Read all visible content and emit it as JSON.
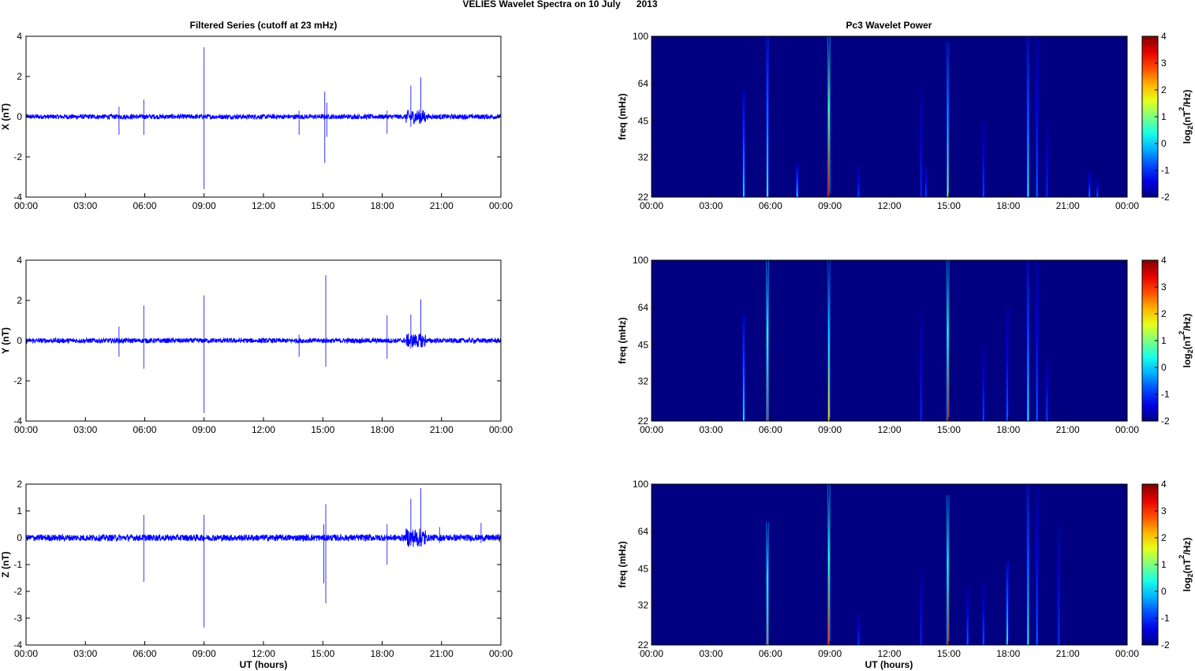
{
  "figure": {
    "title": "VELIES Wavelet Spectra on 10 July      2013",
    "left_column_title": "Filtered Series (cutoff at 23 mHz)",
    "right_column_title": "Pc3 Wavelet Power",
    "x_axis_label": "UT (hours)"
  },
  "colors": {
    "series_line": "#0000ff",
    "spectrogram_background": "#00008f"
  },
  "chart_data": [
    {
      "type": "line",
      "title": "Filtered Series (cutoff at 23 mHz)",
      "ylabel": "X (nT)",
      "xlabel": "",
      "x_ticks": [
        "00:00",
        "03:00",
        "06:00",
        "09:00",
        "12:00",
        "15:00",
        "18:00",
        "21:00",
        "00:00"
      ],
      "xlim_hours": [
        0,
        24
      ],
      "ylim": [
        -4,
        4
      ],
      "y_ticks": [
        -4,
        -2,
        0,
        2,
        4
      ],
      "series": [
        {
          "values_description_only": false,
          "spikes": [
            {
              "t": 4.7,
              "max": 0.5,
              "min": -0.9
            },
            {
              "t": 5.95,
              "max": 0.85,
              "min": -0.9
            },
            {
              "t": 9.0,
              "max": 3.45,
              "min": -3.6
            },
            {
              "t": 13.8,
              "max": 0.3,
              "min": -0.9
            },
            {
              "t": 15.1,
              "max": 1.25,
              "min": -2.3
            },
            {
              "t": 15.2,
              "max": 0.7,
              "min": -1.0
            },
            {
              "t": 18.25,
              "max": 0.3,
              "min": -0.85
            },
            {
              "t": 19.45,
              "max": 1.55,
              "min": -0.5
            },
            {
              "t": 19.95,
              "max": 1.95,
              "min": -0.35
            }
          ]
        }
      ]
    },
    {
      "type": "line",
      "ylabel": "Y (nT)",
      "xlabel": "",
      "x_ticks": [
        "00:00",
        "03:00",
        "06:00",
        "09:00",
        "12:00",
        "15:00",
        "18:00",
        "21:00",
        "00:00"
      ],
      "xlim_hours": [
        0,
        24
      ],
      "ylim": [
        -4,
        4
      ],
      "y_ticks": [
        -4,
        -2,
        0,
        2,
        4
      ],
      "series": [
        {
          "values_description_only": false,
          "spikes": [
            {
              "t": 4.7,
              "max": 0.7,
              "min": -0.8
            },
            {
              "t": 5.95,
              "max": 1.75,
              "min": -1.4
            },
            {
              "t": 9.0,
              "max": 2.25,
              "min": -3.6
            },
            {
              "t": 13.8,
              "max": 0.3,
              "min": -0.8
            },
            {
              "t": 15.15,
              "max": 3.25,
              "min": -1.3
            },
            {
              "t": 18.25,
              "max": 1.25,
              "min": -0.9
            },
            {
              "t": 19.45,
              "max": 1.3,
              "min": -0.4
            },
            {
              "t": 19.95,
              "max": 2.05,
              "min": -0.3
            }
          ]
        }
      ]
    },
    {
      "type": "line",
      "ylabel": "Z (nT)",
      "xlabel": "UT (hours)",
      "x_ticks": [
        "00:00",
        "03:00",
        "06:00",
        "09:00",
        "12:00",
        "15:00",
        "18:00",
        "21:00",
        "00:00"
      ],
      "xlim_hours": [
        0,
        24
      ],
      "ylim": [
        -4,
        2
      ],
      "y_ticks": [
        -4,
        -3,
        -2,
        -1,
        0,
        1,
        2
      ],
      "series": [
        {
          "values_description_only": false,
          "spikes": [
            {
              "t": 5.95,
              "max": 0.85,
              "min": -1.65
            },
            {
              "t": 9.0,
              "max": 0.85,
              "min": -3.35
            },
            {
              "t": 15.15,
              "max": 1.25,
              "min": -2.45
            },
            {
              "t": 15.05,
              "max": 0.5,
              "min": -1.7
            },
            {
              "t": 18.25,
              "max": 0.5,
              "min": -1.0
            },
            {
              "t": 19.45,
              "max": 1.45,
              "min": -0.3
            },
            {
              "t": 19.95,
              "max": 1.85,
              "min": -0.3
            },
            {
              "t": 20.9,
              "max": 0.4,
              "min": -0.2
            },
            {
              "t": 23.0,
              "max": 0.55,
              "min": -0.2
            }
          ]
        }
      ]
    },
    {
      "type": "heatmap",
      "title": "Pc3 Wavelet Power",
      "ylabel": "freq (mHz)",
      "xlabel": "",
      "colorbar_label": "log2(nT2/Hz)",
      "colorbar_ticks": [
        -2,
        -1,
        0,
        1,
        2,
        3,
        4
      ],
      "clim": [
        -2,
        4
      ],
      "x_ticks": [
        "00:00",
        "03:00",
        "06:00",
        "09:00",
        "12:00",
        "15:00",
        "18:00",
        "21:00",
        "00:00"
      ],
      "y_ticks": [
        22,
        32,
        45,
        64,
        100
      ],
      "ylim": [
        22,
        100
      ],
      "y_scale": "log",
      "background_level": -2,
      "bursts": [
        {
          "t": 4.65,
          "fmax": 60,
          "peak": 0.3
        },
        {
          "t": 5.85,
          "fmax": 100,
          "peak": 0.8
        },
        {
          "t": 7.35,
          "fmax": 30,
          "peak": 0.2
        },
        {
          "t": 8.95,
          "fmax": 100,
          "peak": 3.5
        },
        {
          "t": 10.45,
          "fmax": 30,
          "peak": -0.8
        },
        {
          "t": 13.6,
          "fmax": 64,
          "peak": -1.0
        },
        {
          "t": 13.85,
          "fmax": 30,
          "peak": -0.8
        },
        {
          "t": 14.95,
          "fmax": 95,
          "peak": 1.2
        },
        {
          "t": 16.75,
          "fmax": 45,
          "peak": -0.8
        },
        {
          "t": 19.0,
          "fmax": 100,
          "peak": 0.6
        },
        {
          "t": 19.45,
          "fmax": 100,
          "peak": -0.6
        },
        {
          "t": 19.95,
          "fmax": 45,
          "peak": -1.0
        },
        {
          "t": 22.1,
          "fmax": 28,
          "peak": -0.4
        },
        {
          "t": 22.5,
          "fmax": 26,
          "peak": -0.6
        }
      ]
    },
    {
      "type": "heatmap",
      "ylabel": "freq (mHz)",
      "xlabel": "",
      "colorbar_label": "log2(nT2/Hz)",
      "colorbar_ticks": [
        -2,
        -1,
        0,
        1,
        2,
        3,
        4
      ],
      "clim": [
        -2,
        4
      ],
      "x_ticks": [
        "00:00",
        "03:00",
        "06:00",
        "09:00",
        "12:00",
        "15:00",
        "18:00",
        "21:00",
        "00:00"
      ],
      "y_ticks": [
        22,
        32,
        45,
        64,
        100
      ],
      "ylim": [
        22,
        100
      ],
      "y_scale": "log",
      "background_level": -2,
      "bursts": [
        {
          "t": 4.65,
          "fmax": 60,
          "peak": 0.4
        },
        {
          "t": 5.85,
          "fmax": 100,
          "peak": 3.0
        },
        {
          "t": 8.95,
          "fmax": 100,
          "peak": 2.0
        },
        {
          "t": 13.6,
          "fmax": 64,
          "peak": -1.0
        },
        {
          "t": 14.95,
          "fmax": 100,
          "peak": 3.2
        },
        {
          "t": 16.75,
          "fmax": 45,
          "peak": -0.8
        },
        {
          "t": 17.95,
          "fmax": 64,
          "peak": -0.6
        },
        {
          "t": 19.0,
          "fmax": 100,
          "peak": 0.5
        },
        {
          "t": 19.45,
          "fmax": 100,
          "peak": -0.6
        },
        {
          "t": 19.95,
          "fmax": 40,
          "peak": -0.8
        }
      ]
    },
    {
      "type": "heatmap",
      "ylabel": "freq (mHz)",
      "xlabel": "UT (hours)",
      "colorbar_label": "log2(nT2/Hz)",
      "colorbar_ticks": [
        -2,
        -1,
        0,
        1,
        2,
        3,
        4
      ],
      "clim": [
        -2,
        4
      ],
      "x_ticks": [
        "00:00",
        "03:00",
        "06:00",
        "09:00",
        "12:00",
        "15:00",
        "18:00",
        "21:00",
        "00:00"
      ],
      "y_ticks": [
        22,
        32,
        45,
        64,
        100
      ],
      "ylim": [
        22,
        100
      ],
      "y_scale": "log",
      "background_level": -2,
      "bursts": [
        {
          "t": 5.85,
          "fmax": 70,
          "peak": 2.6
        },
        {
          "t": 8.95,
          "fmax": 100,
          "peak": 3.0
        },
        {
          "t": 10.45,
          "fmax": 30,
          "peak": -0.9
        },
        {
          "t": 13.6,
          "fmax": 45,
          "peak": -1.0
        },
        {
          "t": 14.95,
          "fmax": 90,
          "peak": 3.0
        },
        {
          "t": 15.95,
          "fmax": 38,
          "peak": -0.6
        },
        {
          "t": 16.75,
          "fmax": 40,
          "peak": -0.7
        },
        {
          "t": 17.95,
          "fmax": 48,
          "peak": 0.6
        },
        {
          "t": 19.0,
          "fmax": 100,
          "peak": 0.7
        },
        {
          "t": 19.45,
          "fmax": 100,
          "peak": -0.6
        },
        {
          "t": 20.55,
          "fmax": 70,
          "peak": -0.9
        }
      ]
    }
  ]
}
